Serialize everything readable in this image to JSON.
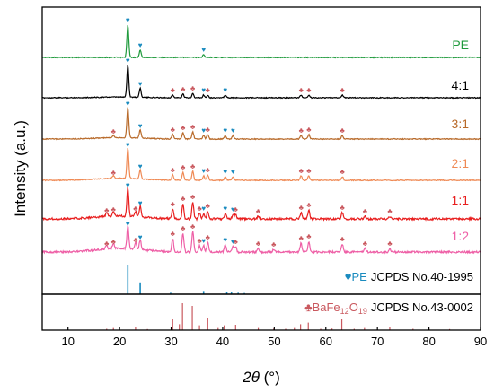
{
  "chart_data": {
    "type": "line",
    "title": "",
    "xlabel": "2θ (°)",
    "ylabel": "Intensity (a.u.)",
    "xlim": [
      5,
      90
    ],
    "xticks": [
      10,
      20,
      30,
      40,
      50,
      60,
      70,
      80,
      90
    ],
    "series": [
      {
        "name": "PE",
        "color": "#1f9a3c",
        "peaks": [
          {
            "x": 21.6,
            "h": 36,
            "marker": "PE"
          },
          {
            "x": 24.0,
            "h": 8,
            "marker": "PE"
          },
          {
            "x": 36.3,
            "h": 3,
            "marker": "PE"
          }
        ]
      },
      {
        "name": "4:1",
        "color": "#000000",
        "peaks": [
          {
            "x": 21.6,
            "h": 36,
            "marker": "PE"
          },
          {
            "x": 24.0,
            "h": 10,
            "marker": "PE"
          },
          {
            "x": 30.3,
            "h": 3,
            "marker": "BaFe12O19"
          },
          {
            "x": 32.3,
            "h": 4,
            "marker": "BaFe12O19"
          },
          {
            "x": 34.2,
            "h": 5,
            "marker": "BaFe12O19"
          },
          {
            "x": 36.3,
            "h": 3,
            "marker": "PE"
          },
          {
            "x": 37.1,
            "h": 3,
            "marker": "BaFe12O19"
          },
          {
            "x": 40.5,
            "h": 3,
            "marker": "PE"
          },
          {
            "x": 55.2,
            "h": 3,
            "marker": "BaFe12O19"
          },
          {
            "x": 56.7,
            "h": 3,
            "marker": "BaFe12O19"
          },
          {
            "x": 63.2,
            "h": 3,
            "marker": "BaFe12O19"
          }
        ]
      },
      {
        "name": "3:1",
        "color": "#b86a2a",
        "peaks": [
          {
            "x": 18.8,
            "h": 3,
            "marker": "BaFe12O19"
          },
          {
            "x": 21.6,
            "h": 34,
            "marker": "PE"
          },
          {
            "x": 24.0,
            "h": 9,
            "marker": "PE"
          },
          {
            "x": 30.3,
            "h": 5,
            "marker": "BaFe12O19"
          },
          {
            "x": 32.3,
            "h": 7,
            "marker": "BaFe12O19"
          },
          {
            "x": 34.2,
            "h": 8,
            "marker": "BaFe12O19"
          },
          {
            "x": 36.3,
            "h": 4,
            "marker": "PE"
          },
          {
            "x": 37.1,
            "h": 5,
            "marker": "BaFe12O19"
          },
          {
            "x": 40.5,
            "h": 4,
            "marker": "PE"
          },
          {
            "x": 42.0,
            "h": 4,
            "marker": "PE"
          },
          {
            "x": 55.2,
            "h": 4,
            "marker": "BaFe12O19"
          },
          {
            "x": 56.7,
            "h": 5,
            "marker": "BaFe12O19"
          },
          {
            "x": 63.2,
            "h": 4,
            "marker": "BaFe12O19"
          }
        ]
      },
      {
        "name": "2:1",
        "color": "#ef8a55",
        "peaks": [
          {
            "x": 18.8,
            "h": 3,
            "marker": "BaFe12O19"
          },
          {
            "x": 21.6,
            "h": 34,
            "marker": "PE"
          },
          {
            "x": 24.0,
            "h": 10,
            "marker": "PE"
          },
          {
            "x": 30.3,
            "h": 6,
            "marker": "BaFe12O19"
          },
          {
            "x": 32.3,
            "h": 9,
            "marker": "BaFe12O19"
          },
          {
            "x": 34.2,
            "h": 10,
            "marker": "BaFe12O19"
          },
          {
            "x": 36.3,
            "h": 5,
            "marker": "PE"
          },
          {
            "x": 37.1,
            "h": 6,
            "marker": "BaFe12O19"
          },
          {
            "x": 40.5,
            "h": 4,
            "marker": "PE"
          },
          {
            "x": 42.0,
            "h": 4,
            "marker": "PE"
          },
          {
            "x": 55.2,
            "h": 5,
            "marker": "BaFe12O19"
          },
          {
            "x": 56.7,
            "h": 5,
            "marker": "BaFe12O19"
          },
          {
            "x": 63.2,
            "h": 4,
            "marker": "BaFe12O19"
          }
        ]
      },
      {
        "name": "1:1",
        "color": "#e81e1e",
        "peaks": [
          {
            "x": 17.5,
            "h": 4,
            "marker": "BaFe12O19"
          },
          {
            "x": 18.8,
            "h": 5,
            "marker": "BaFe12O19"
          },
          {
            "x": 21.6,
            "h": 32,
            "marker": "PE"
          },
          {
            "x": 23.1,
            "h": 6,
            "marker": "BaFe12O19"
          },
          {
            "x": 24.0,
            "h": 12,
            "marker": "PE"
          },
          {
            "x": 30.3,
            "h": 11,
            "marker": "BaFe12O19"
          },
          {
            "x": 32.3,
            "h": 17,
            "marker": "BaFe12O19"
          },
          {
            "x": 34.2,
            "h": 19,
            "marker": "BaFe12O19"
          },
          {
            "x": 35.5,
            "h": 6,
            "marker": "BaFe12O19"
          },
          {
            "x": 36.3,
            "h": 6,
            "marker": "PE"
          },
          {
            "x": 37.1,
            "h": 9,
            "marker": "BaFe12O19"
          },
          {
            "x": 40.5,
            "h": 6,
            "marker": "PE"
          },
          {
            "x": 42.0,
            "h": 5,
            "marker": "PE"
          },
          {
            "x": 42.5,
            "h": 5,
            "marker": "BaFe12O19"
          },
          {
            "x": 46.9,
            "h": 3,
            "marker": "BaFe12O19"
          },
          {
            "x": 55.2,
            "h": 7,
            "marker": "BaFe12O19"
          },
          {
            "x": 56.7,
            "h": 10,
            "marker": "BaFe12O19"
          },
          {
            "x": 63.2,
            "h": 7,
            "marker": "BaFe12O19"
          },
          {
            "x": 67.6,
            "h": 3,
            "marker": "BaFe12O19"
          },
          {
            "x": 72.4,
            "h": 3,
            "marker": "BaFe12O19"
          }
        ]
      },
      {
        "name": "1:2",
        "color": "#ee5fa6",
        "peaks": [
          {
            "x": 17.5,
            "h": 4,
            "marker": "BaFe12O19"
          },
          {
            "x": 18.8,
            "h": 6,
            "marker": "BaFe12O19"
          },
          {
            "x": 21.6,
            "h": 26,
            "marker": "PE"
          },
          {
            "x": 23.1,
            "h": 8,
            "marker": "BaFe12O19"
          },
          {
            "x": 24.0,
            "h": 11,
            "marker": "PE"
          },
          {
            "x": 30.3,
            "h": 15,
            "marker": "BaFe12O19"
          },
          {
            "x": 32.3,
            "h": 21,
            "marker": "BaFe12O19"
          },
          {
            "x": 34.2,
            "h": 23,
            "marker": "BaFe12O19"
          },
          {
            "x": 35.5,
            "h": 7,
            "marker": "BaFe12O19"
          },
          {
            "x": 36.3,
            "h": 7,
            "marker": "PE"
          },
          {
            "x": 37.1,
            "h": 11,
            "marker": "BaFe12O19"
          },
          {
            "x": 40.5,
            "h": 8,
            "marker": "PE"
          },
          {
            "x": 42.0,
            "h": 6,
            "marker": "PE"
          },
          {
            "x": 42.5,
            "h": 6,
            "marker": "BaFe12O19"
          },
          {
            "x": 46.9,
            "h": 4,
            "marker": "BaFe12O19"
          },
          {
            "x": 49.9,
            "h": 3,
            "marker": "BaFe12O19"
          },
          {
            "x": 55.2,
            "h": 10,
            "marker": "BaFe12O19"
          },
          {
            "x": 56.7,
            "h": 12,
            "marker": "BaFe12O19"
          },
          {
            "x": 63.2,
            "h": 9,
            "marker": "BaFe12O19"
          },
          {
            "x": 67.6,
            "h": 4,
            "marker": "BaFe12O19"
          },
          {
            "x": 72.4,
            "h": 4,
            "marker": "BaFe12O19"
          }
        ]
      }
    ],
    "reference_patterns": [
      {
        "label_prefix": "PE",
        "label_card": "JCPDS No.40-1995",
        "color": "#1a8bbf",
        "lines": [
          {
            "x": 21.6,
            "i": 100
          },
          {
            "x": 24.0,
            "i": 40
          },
          {
            "x": 29.9,
            "i": 5
          },
          {
            "x": 36.3,
            "i": 11
          },
          {
            "x": 40.8,
            "i": 8
          },
          {
            "x": 41.7,
            "i": 6
          },
          {
            "x": 43.0,
            "i": 5
          },
          {
            "x": 44.2,
            "i": 4
          }
        ]
      },
      {
        "label_prefix": "BaFe",
        "label_sub1": "12",
        "label_mid": "O",
        "label_sub2": "19",
        "label_card": "JCPDS No.43-0002",
        "color": "#c9585e",
        "lines": [
          {
            "x": 17.5,
            "i": 5
          },
          {
            "x": 18.8,
            "i": 8
          },
          {
            "x": 23.1,
            "i": 12
          },
          {
            "x": 25.4,
            "i": 4
          },
          {
            "x": 30.3,
            "i": 40
          },
          {
            "x": 31.6,
            "i": 22
          },
          {
            "x": 32.2,
            "i": 100
          },
          {
            "x": 34.1,
            "i": 90
          },
          {
            "x": 35.5,
            "i": 18
          },
          {
            "x": 37.1,
            "i": 45
          },
          {
            "x": 39.1,
            "i": 8
          },
          {
            "x": 40.3,
            "i": 18
          },
          {
            "x": 42.5,
            "i": 20
          },
          {
            "x": 46.9,
            "i": 8
          },
          {
            "x": 49.9,
            "i": 6
          },
          {
            "x": 52.2,
            "i": 5
          },
          {
            "x": 53.9,
            "i": 8
          },
          {
            "x": 55.1,
            "i": 22
          },
          {
            "x": 56.6,
            "i": 28
          },
          {
            "x": 59.0,
            "i": 5
          },
          {
            "x": 61.2,
            "i": 6
          },
          {
            "x": 63.1,
            "i": 40
          },
          {
            "x": 65.5,
            "i": 5
          },
          {
            "x": 67.5,
            "i": 8
          },
          {
            "x": 72.4,
            "i": 10
          },
          {
            "x": 76.9,
            "i": 5
          },
          {
            "x": 80.0,
            "i": 5
          },
          {
            "x": 84.0,
            "i": 4
          }
        ]
      }
    ],
    "colors": {
      "pe_marker": "#1a8bbf",
      "bafe_marker": "#c9585e"
    }
  }
}
